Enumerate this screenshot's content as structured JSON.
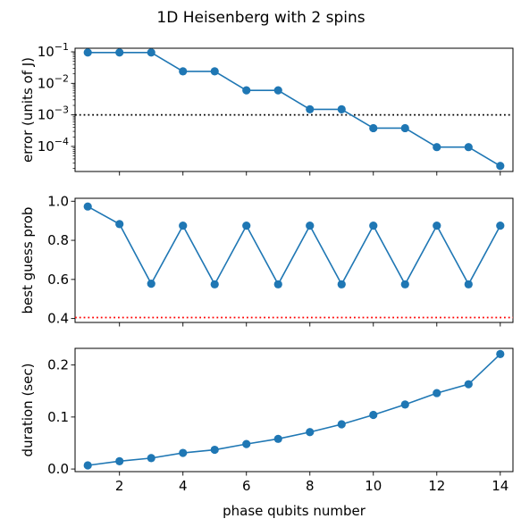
{
  "chart_data": {
    "title": "1D Heisenberg with 2 spins",
    "type": "line",
    "color": "#1f77b4",
    "shared_x": {
      "label": "phase qubits number",
      "lim": [
        0.6,
        14.4
      ],
      "ticks": [
        2,
        4,
        6,
        8,
        10,
        12,
        14
      ],
      "tick_labels": [
        "2",
        "4",
        "6",
        "8",
        "10",
        "12",
        "14"
      ]
    },
    "subplots": [
      {
        "type": "line",
        "ylabel": "error (units of J)",
        "yscale": "log",
        "ylim": [
          1.6e-05,
          0.13
        ],
        "yticks": [
          0.1,
          0.01,
          0.001,
          0.0001
        ],
        "ytick_labels": [
          {
            "base": "10",
            "exp": "−1"
          },
          {
            "base": "10",
            "exp": "−2"
          },
          {
            "base": "10",
            "exp": "−3"
          },
          {
            "base": "10",
            "exp": "−4"
          }
        ],
        "x": [
          1,
          2,
          3,
          4,
          5,
          6,
          7,
          8,
          9,
          10,
          11,
          12,
          13,
          14
        ],
        "values": [
          0.095,
          0.095,
          0.095,
          0.024,
          0.024,
          0.006,
          0.006,
          0.0015,
          0.0015,
          0.00038,
          0.00038,
          9.5e-05,
          9.5e-05,
          2.4e-05
        ],
        "hline": {
          "y": 0.001,
          "color": "#000000",
          "style": "dotted"
        }
      },
      {
        "type": "line",
        "ylabel": "best guess prob",
        "yscale": "linear",
        "ylim": [
          0.38,
          1.015
        ],
        "yticks": [
          0.4,
          0.6,
          0.8,
          1.0
        ],
        "ytick_labels": [
          "0.4",
          "0.6",
          "0.8",
          "1.0"
        ],
        "x": [
          1,
          2,
          3,
          4,
          5,
          6,
          7,
          8,
          9,
          10,
          11,
          12,
          13,
          14
        ],
        "values": [
          0.973,
          0.883,
          0.578,
          0.875,
          0.575,
          0.875,
          0.575,
          0.875,
          0.575,
          0.875,
          0.575,
          0.875,
          0.575,
          0.875
        ],
        "hline": {
          "y": 0.405,
          "color": "#ff0000",
          "style": "dotted"
        }
      },
      {
        "type": "line",
        "ylabel": "duration (sec)",
        "yscale": "linear",
        "ylim": [
          -0.005,
          0.232
        ],
        "yticks": [
          0.0,
          0.1,
          0.2
        ],
        "ytick_labels": [
          "0.0",
          "0.1",
          "0.2"
        ],
        "x": [
          1,
          2,
          3,
          4,
          5,
          6,
          7,
          8,
          9,
          10,
          11,
          12,
          13,
          14
        ],
        "values": [
          0.007,
          0.015,
          0.021,
          0.031,
          0.037,
          0.048,
          0.058,
          0.071,
          0.086,
          0.104,
          0.124,
          0.146,
          0.163,
          0.221
        ]
      }
    ]
  }
}
